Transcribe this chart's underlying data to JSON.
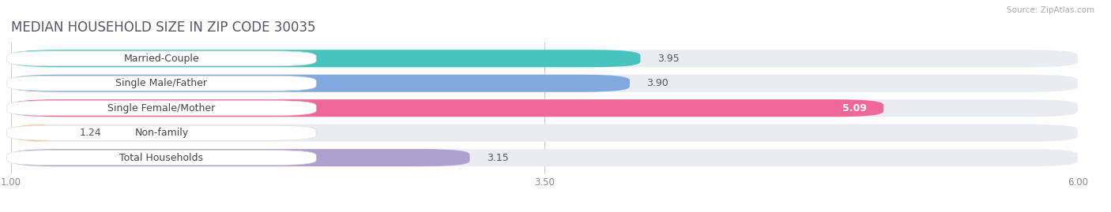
{
  "title": "MEDIAN HOUSEHOLD SIZE IN ZIP CODE 30035",
  "source": "Source: ZipAtlas.com",
  "categories": [
    "Married-Couple",
    "Single Male/Father",
    "Single Female/Mother",
    "Non-family",
    "Total Households"
  ],
  "values": [
    3.95,
    3.9,
    5.09,
    1.24,
    3.15
  ],
  "bar_colors": [
    "#48c4be",
    "#82a8e0",
    "#f06898",
    "#f5c88a",
    "#b0a0d0"
  ],
  "bar_edge_colors": [
    "#38b0aa",
    "#6890c8",
    "#d85080",
    "#e0b060",
    "#9880b8"
  ],
  "xmin": 1.0,
  "xmax": 6.0,
  "xticks": [
    1.0,
    3.5,
    6.0
  ],
  "background_color": "#ffffff",
  "bar_bg_color": "#ebebf2",
  "row_bg_color": "#f5f5fa",
  "title_fontsize": 12,
  "label_fontsize": 9,
  "value_fontsize": 9,
  "value_inside_index": 2,
  "value_inside_color": "#ffffff"
}
